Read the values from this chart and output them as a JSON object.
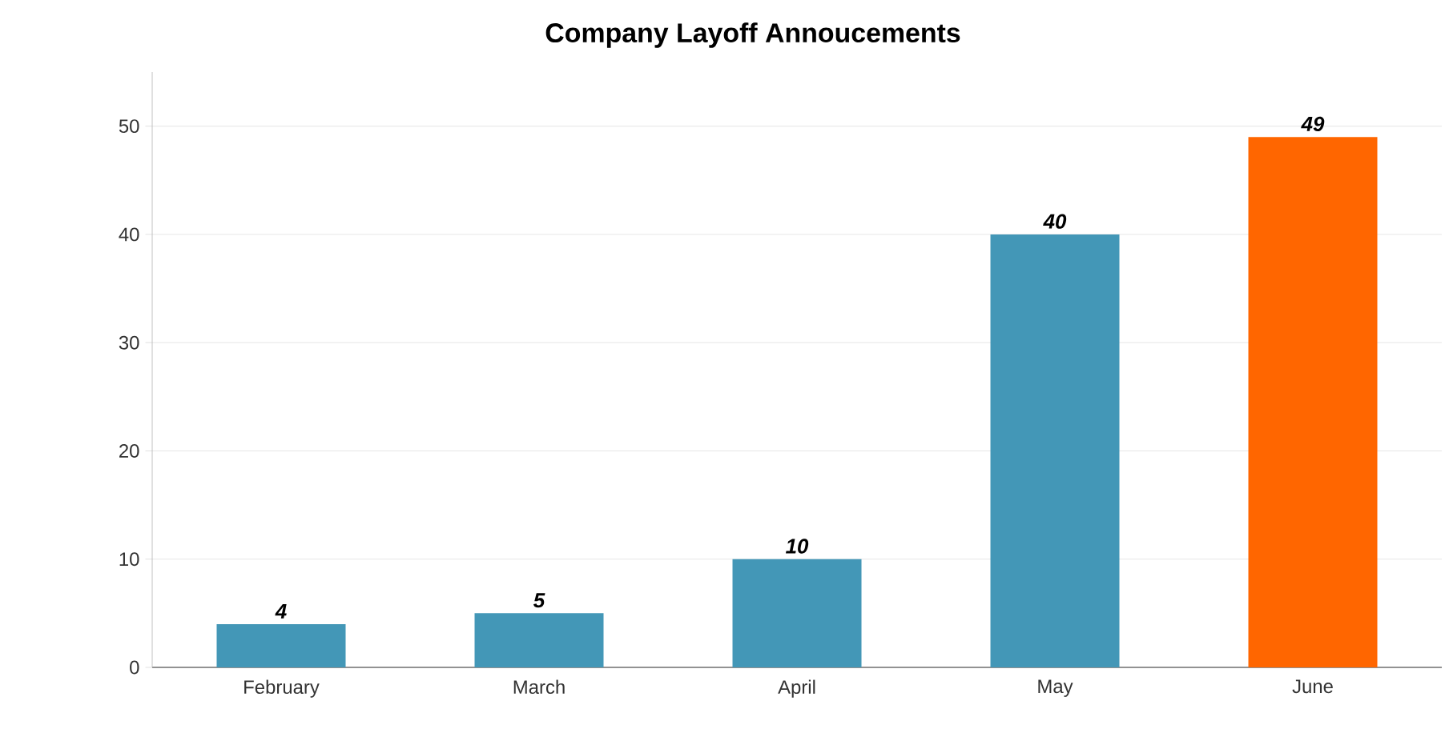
{
  "chart_data": {
    "type": "bar",
    "title": "Company Layoff Annoucements",
    "categories": [
      "February",
      "March",
      "April",
      "May",
      "June"
    ],
    "values": [
      4,
      5,
      10,
      40,
      49
    ],
    "colors": [
      "#4397b7",
      "#4397b7",
      "#4397b7",
      "#4397b7",
      "#ff6600"
    ],
    "ylim": [
      0,
      55
    ],
    "yticks": [
      0,
      10,
      20,
      30,
      40,
      50
    ],
    "grid": "y",
    "data_labels": true
  }
}
